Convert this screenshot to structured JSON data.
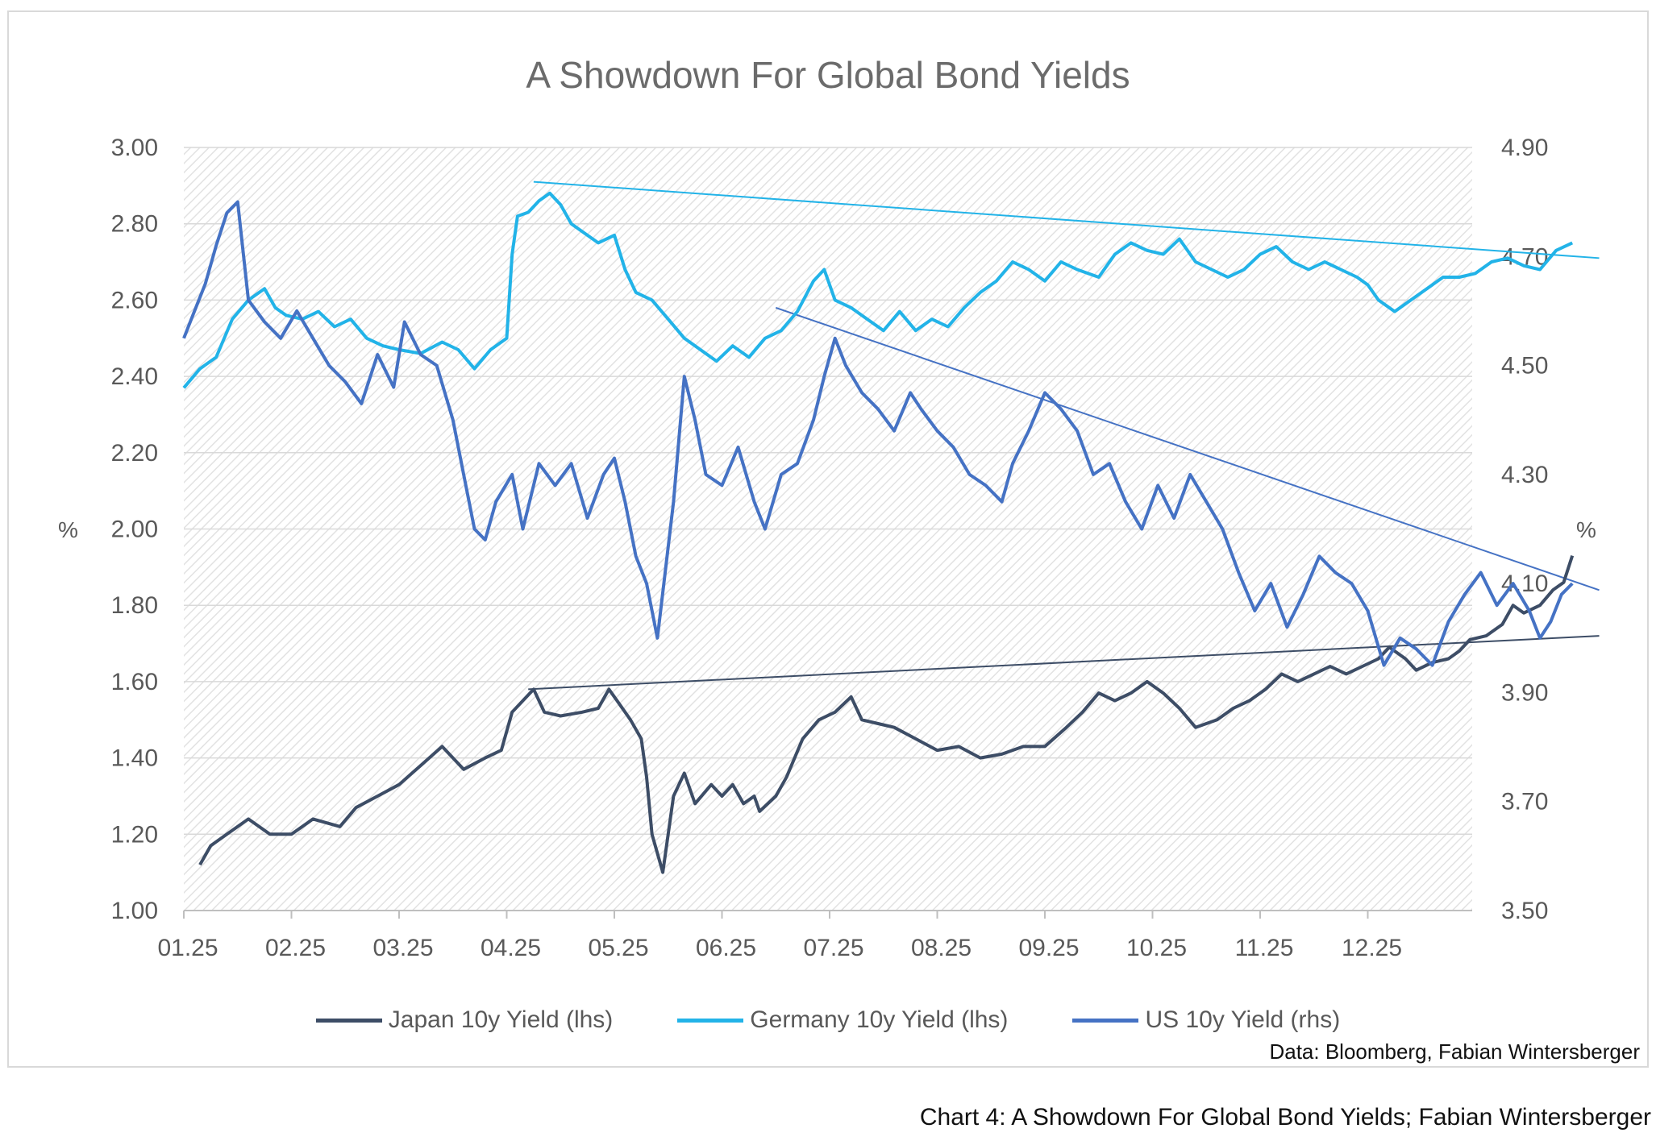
{
  "title": "A Showdown For Global Bond Yields",
  "source_note": "Data: Bloomberg, Fabian Wintersberger",
  "caption": "Chart 4: A Showdown For Global Bond Yields; Fabian Wintersberger",
  "colors": {
    "japan": "#3d4d66",
    "germany": "#22b3e8",
    "us": "#4572c4",
    "grid": "#d9d9d9"
  },
  "chart_data": {
    "type": "line",
    "title": "A Showdown For Global Bond Yields",
    "ylabel_left": "%",
    "ylabel_right": "%",
    "ylim_left": [
      1.0,
      3.0
    ],
    "ylim_right": [
      3.5,
      4.9
    ],
    "yticks_left": [
      "3.00",
      "2.80",
      "2.60",
      "2.40",
      "2.20",
      "2.00",
      "1.80",
      "1.60",
      "1.40",
      "1.20",
      "1.00"
    ],
    "yticks_right": [
      "4.90",
      "4.70",
      "4.50",
      "4.30",
      "4.10",
      "3.90",
      "3.70",
      "3.50"
    ],
    "x_range_months": [
      0,
      12
    ],
    "xtick_labels": [
      "01.25",
      "02.25",
      "03.25",
      "04.25",
      "05.25",
      "06.25",
      "07.25",
      "08.25",
      "09.25",
      "10.25",
      "11.25",
      "12.25"
    ],
    "grid": "horizontal, hatched plot background",
    "legend_position": "bottom",
    "series": [
      {
        "name": "Japan 10y Yield (lhs)",
        "axis": "left",
        "color": "#3d4d66",
        "points": [
          [
            0.15,
            1.12
          ],
          [
            0.25,
            1.17
          ],
          [
            0.4,
            1.2
          ],
          [
            0.6,
            1.24
          ],
          [
            0.8,
            1.2
          ],
          [
            1.0,
            1.2
          ],
          [
            1.2,
            1.24
          ],
          [
            1.45,
            1.22
          ],
          [
            1.6,
            1.27
          ],
          [
            1.8,
            1.3
          ],
          [
            2.0,
            1.33
          ],
          [
            2.2,
            1.38
          ],
          [
            2.4,
            1.43
          ],
          [
            2.6,
            1.37
          ],
          [
            2.8,
            1.4
          ],
          [
            2.95,
            1.42
          ],
          [
            3.05,
            1.52
          ],
          [
            3.15,
            1.55
          ],
          [
            3.25,
            1.58
          ],
          [
            3.35,
            1.52
          ],
          [
            3.5,
            1.51
          ],
          [
            3.7,
            1.52
          ],
          [
            3.85,
            1.53
          ],
          [
            3.95,
            1.58
          ],
          [
            4.05,
            1.54
          ],
          [
            4.15,
            1.5
          ],
          [
            4.25,
            1.45
          ],
          [
            4.3,
            1.35
          ],
          [
            4.35,
            1.2
          ],
          [
            4.45,
            1.1
          ],
          [
            4.55,
            1.3
          ],
          [
            4.65,
            1.36
          ],
          [
            4.75,
            1.28
          ],
          [
            4.9,
            1.33
          ],
          [
            5.0,
            1.3
          ],
          [
            5.1,
            1.33
          ],
          [
            5.2,
            1.28
          ],
          [
            5.3,
            1.3
          ],
          [
            5.35,
            1.26
          ],
          [
            5.5,
            1.3
          ],
          [
            5.6,
            1.35
          ],
          [
            5.75,
            1.45
          ],
          [
            5.9,
            1.5
          ],
          [
            6.05,
            1.52
          ],
          [
            6.2,
            1.56
          ],
          [
            6.3,
            1.5
          ],
          [
            6.45,
            1.49
          ],
          [
            6.6,
            1.48
          ],
          [
            6.8,
            1.45
          ],
          [
            7.0,
            1.42
          ],
          [
            7.2,
            1.43
          ],
          [
            7.4,
            1.4
          ],
          [
            7.6,
            1.41
          ],
          [
            7.8,
            1.43
          ],
          [
            8.0,
            1.43
          ],
          [
            8.2,
            1.48
          ],
          [
            8.35,
            1.52
          ],
          [
            8.5,
            1.57
          ],
          [
            8.65,
            1.55
          ],
          [
            8.8,
            1.57
          ],
          [
            8.95,
            1.6
          ],
          [
            9.1,
            1.57
          ],
          [
            9.25,
            1.53
          ],
          [
            9.4,
            1.48
          ],
          [
            9.6,
            1.5
          ],
          [
            9.75,
            1.53
          ],
          [
            9.9,
            1.55
          ],
          [
            10.05,
            1.58
          ],
          [
            10.2,
            1.62
          ],
          [
            10.35,
            1.6
          ],
          [
            10.5,
            1.62
          ],
          [
            10.65,
            1.64
          ],
          [
            10.8,
            1.62
          ],
          [
            10.95,
            1.64
          ],
          [
            11.1,
            1.66
          ],
          [
            11.2,
            1.69
          ],
          [
            11.35,
            1.66
          ],
          [
            11.45,
            1.63
          ],
          [
            11.6,
            1.65
          ],
          [
            11.75,
            1.66
          ],
          [
            11.85,
            1.68
          ],
          [
            11.95,
            1.71
          ],
          [
            12.1,
            1.72
          ],
          [
            12.25,
            1.75
          ],
          [
            12.35,
            1.8
          ],
          [
            12.45,
            1.78
          ],
          [
            12.6,
            1.8
          ],
          [
            12.72,
            1.84
          ],
          [
            12.82,
            1.86
          ],
          [
            12.9,
            1.93
          ]
        ]
      },
      {
        "name": "Germany 10y Yield (lhs)",
        "axis": "left",
        "color": "#22b3e8",
        "points": [
          [
            0.0,
            2.37
          ],
          [
            0.15,
            2.42
          ],
          [
            0.3,
            2.45
          ],
          [
            0.45,
            2.55
          ],
          [
            0.6,
            2.6
          ],
          [
            0.75,
            2.63
          ],
          [
            0.85,
            2.58
          ],
          [
            0.95,
            2.56
          ],
          [
            1.1,
            2.55
          ],
          [
            1.25,
            2.57
          ],
          [
            1.4,
            2.53
          ],
          [
            1.55,
            2.55
          ],
          [
            1.7,
            2.5
          ],
          [
            1.85,
            2.48
          ],
          [
            2.0,
            2.47
          ],
          [
            2.2,
            2.46
          ],
          [
            2.4,
            2.49
          ],
          [
            2.55,
            2.47
          ],
          [
            2.7,
            2.42
          ],
          [
            2.85,
            2.47
          ],
          [
            3.0,
            2.5
          ],
          [
            3.05,
            2.72
          ],
          [
            3.1,
            2.82
          ],
          [
            3.2,
            2.83
          ],
          [
            3.3,
            2.86
          ],
          [
            3.4,
            2.88
          ],
          [
            3.5,
            2.85
          ],
          [
            3.6,
            2.8
          ],
          [
            3.7,
            2.78
          ],
          [
            3.85,
            2.75
          ],
          [
            4.0,
            2.77
          ],
          [
            4.1,
            2.68
          ],
          [
            4.2,
            2.62
          ],
          [
            4.35,
            2.6
          ],
          [
            4.5,
            2.55
          ],
          [
            4.65,
            2.5
          ],
          [
            4.8,
            2.47
          ],
          [
            4.95,
            2.44
          ],
          [
            5.1,
            2.48
          ],
          [
            5.25,
            2.45
          ],
          [
            5.4,
            2.5
          ],
          [
            5.55,
            2.52
          ],
          [
            5.7,
            2.57
          ],
          [
            5.85,
            2.65
          ],
          [
            5.95,
            2.68
          ],
          [
            6.05,
            2.6
          ],
          [
            6.2,
            2.58
          ],
          [
            6.35,
            2.55
          ],
          [
            6.5,
            2.52
          ],
          [
            6.65,
            2.57
          ],
          [
            6.8,
            2.52
          ],
          [
            6.95,
            2.55
          ],
          [
            7.1,
            2.53
          ],
          [
            7.25,
            2.58
          ],
          [
            7.4,
            2.62
          ],
          [
            7.55,
            2.65
          ],
          [
            7.7,
            2.7
          ],
          [
            7.85,
            2.68
          ],
          [
            8.0,
            2.65
          ],
          [
            8.15,
            2.7
          ],
          [
            8.3,
            2.68
          ],
          [
            8.5,
            2.66
          ],
          [
            8.65,
            2.72
          ],
          [
            8.8,
            2.75
          ],
          [
            8.95,
            2.73
          ],
          [
            9.1,
            2.72
          ],
          [
            9.25,
            2.76
          ],
          [
            9.4,
            2.7
          ],
          [
            9.55,
            2.68
          ],
          [
            9.7,
            2.66
          ],
          [
            9.85,
            2.68
          ],
          [
            10.0,
            2.72
          ],
          [
            10.15,
            2.74
          ],
          [
            10.3,
            2.7
          ],
          [
            10.45,
            2.68
          ],
          [
            10.6,
            2.7
          ],
          [
            10.75,
            2.68
          ],
          [
            10.9,
            2.66
          ],
          [
            11.0,
            2.64
          ],
          [
            11.1,
            2.6
          ],
          [
            11.25,
            2.57
          ],
          [
            11.4,
            2.6
          ],
          [
            11.55,
            2.63
          ],
          [
            11.7,
            2.66
          ],
          [
            11.85,
            2.66
          ],
          [
            12.0,
            2.67
          ],
          [
            12.15,
            2.7
          ],
          [
            12.3,
            2.71
          ],
          [
            12.45,
            2.69
          ],
          [
            12.6,
            2.68
          ],
          [
            12.75,
            2.73
          ],
          [
            12.9,
            2.75
          ]
        ]
      },
      {
        "name": "US 10y Yield (rhs)",
        "axis": "right",
        "color": "#4572c4",
        "points": [
          [
            0.0,
            4.55
          ],
          [
            0.1,
            4.6
          ],
          [
            0.2,
            4.65
          ],
          [
            0.3,
            4.72
          ],
          [
            0.4,
            4.78
          ],
          [
            0.5,
            4.8
          ],
          [
            0.6,
            4.62
          ],
          [
            0.75,
            4.58
          ],
          [
            0.9,
            4.55
          ],
          [
            1.05,
            4.6
          ],
          [
            1.2,
            4.55
          ],
          [
            1.35,
            4.5
          ],
          [
            1.5,
            4.47
          ],
          [
            1.65,
            4.43
          ],
          [
            1.8,
            4.52
          ],
          [
            1.95,
            4.46
          ],
          [
            2.05,
            4.58
          ],
          [
            2.2,
            4.52
          ],
          [
            2.35,
            4.5
          ],
          [
            2.5,
            4.4
          ],
          [
            2.6,
            4.3
          ],
          [
            2.7,
            4.2
          ],
          [
            2.8,
            4.18
          ],
          [
            2.9,
            4.25
          ],
          [
            3.05,
            4.3
          ],
          [
            3.15,
            4.2
          ],
          [
            3.3,
            4.32
          ],
          [
            3.45,
            4.28
          ],
          [
            3.6,
            4.32
          ],
          [
            3.75,
            4.22
          ],
          [
            3.9,
            4.3
          ],
          [
            4.0,
            4.33
          ],
          [
            4.1,
            4.25
          ],
          [
            4.2,
            4.15
          ],
          [
            4.3,
            4.1
          ],
          [
            4.4,
            4.0
          ],
          [
            4.55,
            4.25
          ],
          [
            4.65,
            4.48
          ],
          [
            4.75,
            4.4
          ],
          [
            4.85,
            4.3
          ],
          [
            5.0,
            4.28
          ],
          [
            5.15,
            4.35
          ],
          [
            5.3,
            4.25
          ],
          [
            5.4,
            4.2
          ],
          [
            5.55,
            4.3
          ],
          [
            5.7,
            4.32
          ],
          [
            5.85,
            4.4
          ],
          [
            5.95,
            4.48
          ],
          [
            6.05,
            4.55
          ],
          [
            6.15,
            4.5
          ],
          [
            6.3,
            4.45
          ],
          [
            6.45,
            4.42
          ],
          [
            6.6,
            4.38
          ],
          [
            6.75,
            4.45
          ],
          [
            6.85,
            4.42
          ],
          [
            7.0,
            4.38
          ],
          [
            7.15,
            4.35
          ],
          [
            7.3,
            4.3
          ],
          [
            7.45,
            4.28
          ],
          [
            7.6,
            4.25
          ],
          [
            7.7,
            4.32
          ],
          [
            7.85,
            4.38
          ],
          [
            8.0,
            4.45
          ],
          [
            8.15,
            4.42
          ],
          [
            8.3,
            4.38
          ],
          [
            8.45,
            4.3
          ],
          [
            8.6,
            4.32
          ],
          [
            8.75,
            4.25
          ],
          [
            8.9,
            4.2
          ],
          [
            9.05,
            4.28
          ],
          [
            9.2,
            4.22
          ],
          [
            9.35,
            4.3
          ],
          [
            9.5,
            4.25
          ],
          [
            9.65,
            4.2
          ],
          [
            9.8,
            4.12
          ],
          [
            9.95,
            4.05
          ],
          [
            10.1,
            4.1
          ],
          [
            10.25,
            4.02
          ],
          [
            10.4,
            4.08
          ],
          [
            10.55,
            4.15
          ],
          [
            10.7,
            4.12
          ],
          [
            10.85,
            4.1
          ],
          [
            11.0,
            4.05
          ],
          [
            11.15,
            3.95
          ],
          [
            11.3,
            4.0
          ],
          [
            11.45,
            3.98
          ],
          [
            11.6,
            3.95
          ],
          [
            11.75,
            4.03
          ],
          [
            11.9,
            4.08
          ],
          [
            12.05,
            4.12
          ],
          [
            12.2,
            4.06
          ],
          [
            12.35,
            4.1
          ],
          [
            12.5,
            4.05
          ],
          [
            12.6,
            4.0
          ],
          [
            12.7,
            4.03
          ],
          [
            12.8,
            4.08
          ],
          [
            12.9,
            4.1
          ]
        ]
      }
    ],
    "trendlines": [
      {
        "axis": "left",
        "color": "#22b3e8",
        "from": [
          3.25,
          2.91
        ],
        "to": [
          13.15,
          2.71
        ]
      },
      {
        "axis": "left",
        "color": "#4572c4",
        "from": [
          5.5,
          2.58
        ],
        "to": [
          13.15,
          1.84
        ]
      },
      {
        "axis": "left",
        "color": "#3d4d66",
        "from": [
          3.2,
          1.58
        ],
        "to": [
          13.15,
          1.72
        ]
      }
    ]
  },
  "legend": [
    {
      "label": "Japan 10y Yield (lhs)",
      "color": "#3d4d66"
    },
    {
      "label": "Germany 10y Yield (lhs)",
      "color": "#22b3e8"
    },
    {
      "label": "US 10y Yield (rhs)",
      "color": "#4572c4"
    }
  ]
}
